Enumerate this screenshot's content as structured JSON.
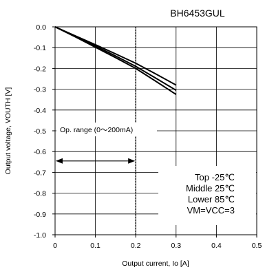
{
  "chart_data": {
    "type": "line",
    "title": "BH6453GUL",
    "xlabel": "Output current, Io [A]",
    "ylabel": "Output voltage, VOUTH [V]",
    "xlim": [
      0,
      0.5
    ],
    "ylim": [
      -1.0,
      0.0
    ],
    "x_ticks": [
      "0",
      "0.1",
      "0.2",
      "0.3",
      "0.4",
      "0.5"
    ],
    "y_ticks": [
      "0.0",
      "-0.1",
      "-0.2",
      "-0.3",
      "-0.4",
      "-0.5",
      "-0.6",
      "-0.7",
      "-0.8",
      "-0.9",
      "-1.0"
    ],
    "grid": true,
    "series": [
      {
        "name": "Top -25℃",
        "x": [
          0,
          0.05,
          0.1,
          0.15,
          0.2,
          0.25,
          0.3
        ],
        "y": [
          0,
          -0.043,
          -0.086,
          -0.13,
          -0.175,
          -0.227,
          -0.28
        ]
      },
      {
        "name": "Middle 25℃",
        "x": [
          0,
          0.05,
          0.1,
          0.15,
          0.2,
          0.25,
          0.3
        ],
        "y": [
          0,
          -0.045,
          -0.092,
          -0.14,
          -0.19,
          -0.247,
          -0.305
        ]
      },
      {
        "name": "Lower 85℃",
        "x": [
          0,
          0.05,
          0.1,
          0.15,
          0.2,
          0.25,
          0.3
        ],
        "y": [
          0,
          -0.048,
          -0.098,
          -0.148,
          -0.2,
          -0.262,
          -0.325
        ]
      }
    ],
    "vertical_marker_x": 0.2,
    "annotation": {
      "label": "Op. range (0～200mA)",
      "arrow_x": [
        0,
        0.2
      ],
      "arrow_y": -0.645
    },
    "legend_lines": [
      "Top -25℃",
      "Middle 25℃",
      "Lower 85℃",
      "VM=VCC=3"
    ],
    "legend_position": "bottom-right"
  }
}
